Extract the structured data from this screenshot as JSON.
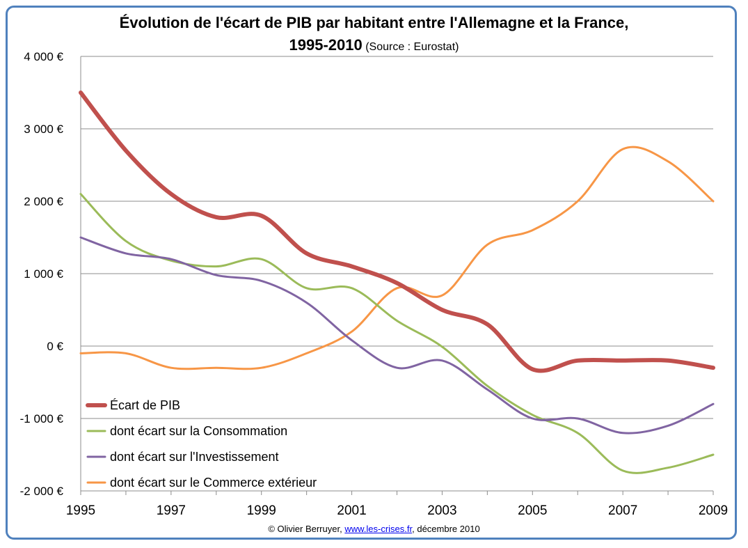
{
  "title": "Évolution de l'écart de PIB par habitant entre l'Allemagne et la France,",
  "subtitle_years": "1995-2010",
  "subtitle_source": "(Source : Eurostat)",
  "credit": {
    "prefix": "© Olivier Berruyer, ",
    "link": "www.les-crises.fr",
    "suffix": ", décembre 2010"
  },
  "chart_data": {
    "type": "line",
    "title": "Évolution de l'écart de PIB par habitant entre l'Allemagne et la France, 1995-2010 (Source : Eurostat)",
    "xlabel": "",
    "ylabel": "",
    "x": [
      1995,
      1996,
      1997,
      1998,
      1999,
      2000,
      2001,
      2002,
      2003,
      2004,
      2005,
      2006,
      2007,
      2008,
      2009
    ],
    "xlim": [
      1995,
      2009
    ],
    "ylim": [
      -2000,
      4000
    ],
    "x_ticks": [
      "1995",
      "1997",
      "1999",
      "2001",
      "2003",
      "2005",
      "2007",
      "2009"
    ],
    "y_ticks": [
      {
        "value": 4000,
        "label": "4 000 €"
      },
      {
        "value": 3000,
        "label": "3 000 €"
      },
      {
        "value": 2000,
        "label": "2 000 €"
      },
      {
        "value": 1000,
        "label": "1 000 €"
      },
      {
        "value": 0,
        "label": "0 €"
      },
      {
        "value": -1000,
        "label": "-1 000 €"
      },
      {
        "value": -2000,
        "label": "-2 000 €"
      }
    ],
    "grid": true,
    "legend_position": "bottom-left",
    "series": [
      {
        "name": "Écart de PIB",
        "color": "#c0504d",
        "width": 6,
        "values": [
          3500,
          2700,
          2100,
          1780,
          1800,
          1280,
          1100,
          870,
          500,
          300,
          -320,
          -200,
          -200,
          -200,
          -300
        ]
      },
      {
        "name": "dont écart sur la Consommation",
        "color": "#9bbb59",
        "width": 3,
        "values": [
          2100,
          1450,
          1180,
          1100,
          1200,
          800,
          800,
          350,
          -10,
          -550,
          -950,
          -1200,
          -1720,
          -1680,
          -1500
        ]
      },
      {
        "name": "dont écart sur l'Investissement",
        "color": "#8064a2",
        "width": 3,
        "values": [
          1500,
          1280,
          1200,
          980,
          900,
          600,
          80,
          -300,
          -200,
          -600,
          -1000,
          -1000,
          -1200,
          -1100,
          -800
        ]
      },
      {
        "name": "dont écart sur le Commerce extérieur",
        "color": "#f79646",
        "width": 3,
        "values": [
          -100,
          -100,
          -300,
          -300,
          -300,
          -100,
          200,
          800,
          700,
          1400,
          1600,
          2000,
          2720,
          2550,
          2000
        ]
      }
    ]
  }
}
